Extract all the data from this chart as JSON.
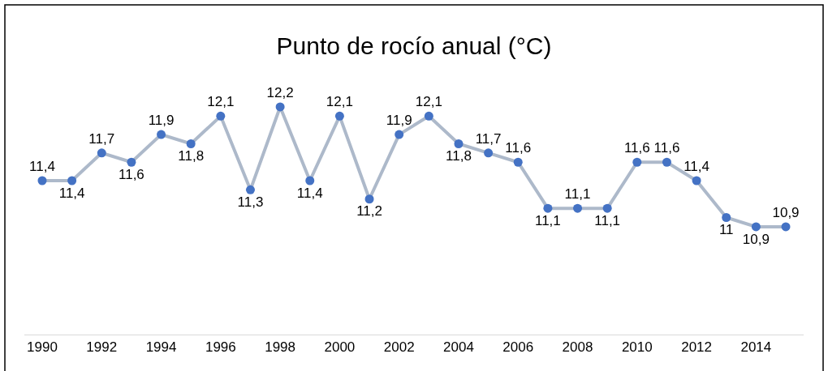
{
  "chart_data": {
    "type": "line",
    "title": "Punto de rocío anual (°C)",
    "categories": [
      "1990",
      null,
      "1992",
      null,
      "1994",
      null,
      "1996",
      null,
      "1998",
      null,
      "2000",
      null,
      "2002",
      null,
      "2004",
      null,
      "2006",
      null,
      "2008",
      null,
      "2010",
      null,
      "2012",
      null,
      "2014",
      null
    ],
    "series": [
      {
        "color": "#adb9ca",
        "colors": [
          "#4472c4",
          "#4472c4",
          "#4472c4",
          "#4472c4",
          "#4472c4",
          "#4472c4",
          "#4472c4",
          "#4472c4",
          "#4472c4",
          "#4472c4",
          "#4472c4",
          "#4472c4",
          "#4472c4",
          "#4472c4",
          "#4472c4",
          "#4472c4",
          "#4472c4",
          "#4472c4",
          "#4472c4",
          "#4472c4",
          "#4472c4",
          "#4472c4",
          "#4472c4",
          "#4472c4",
          "#4472c4",
          "#4472c4"
        ],
        "values": [
          11.4,
          11.4,
          11.7,
          11.6,
          11.9,
          11.8,
          12.1,
          11.3,
          12.2,
          11.4,
          12.1,
          11.2,
          11.9,
          12.1,
          11.8,
          11.7,
          11.6,
          11.1,
          11.1,
          11.1,
          11.6,
          11.6,
          11.4,
          11,
          10.9,
          10.9
        ],
        "value_labels": [
          "11,4",
          "11,4",
          "11,7",
          "11,6",
          "11,9",
          "11,8",
          "12,1",
          "11,3",
          "12,2",
          "11,4",
          "12,1",
          "11,2",
          "11,9",
          "12,1",
          "11,8",
          "11,7",
          "11,6",
          "11,1",
          "11,1",
          "11,1",
          "11,6",
          "11,6",
          "11,4",
          "11",
          "10,9",
          "10,9"
        ]
      }
    ],
    "marker": "circle",
    "legend": false
  }
}
